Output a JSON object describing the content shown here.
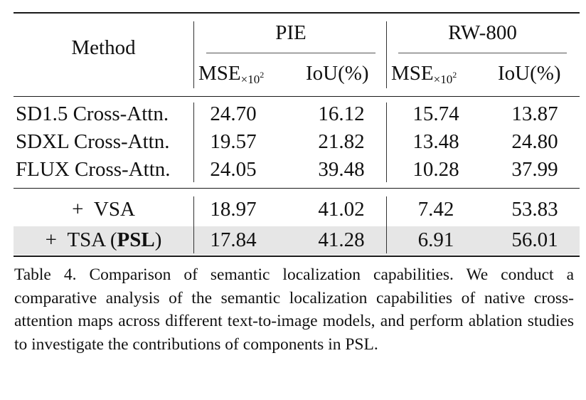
{
  "table": {
    "header": {
      "method": "Method",
      "groups": [
        "PIE",
        "RW-800"
      ],
      "mse_base": "MSE",
      "mse_sub": "×10",
      "mse_exp": "2",
      "iou": "IoU(%)"
    },
    "rows": [
      {
        "method": "SD1.5 Cross-Attn.",
        "pie_mse": "24.70",
        "pie_iou": "16.12",
        "rw_mse": "15.74",
        "rw_iou": "13.87"
      },
      {
        "method": "SDXL Cross-Attn.",
        "pie_mse": "19.57",
        "pie_iou": "21.82",
        "rw_mse": "13.48",
        "rw_iou": "24.80"
      },
      {
        "method": "FLUX Cross-Attn.",
        "pie_mse": "24.05",
        "pie_iou": "39.48",
        "rw_mse": "10.28",
        "rw_iou": "37.99"
      }
    ],
    "ablation": [
      {
        "prefix": "+",
        "name": "VSA",
        "bold": "",
        "pie_mse": "18.97",
        "pie_iou": "41.02",
        "rw_mse": "7.42",
        "rw_iou": "53.83"
      },
      {
        "prefix": "+",
        "name": "TSA (",
        "bold": "PSL",
        "suffix": ")",
        "pie_mse": "17.84",
        "pie_iou": "41.28",
        "rw_mse": "6.91",
        "rw_iou": "56.01"
      }
    ]
  },
  "caption": "Table 4.  Comparison of semantic localization capabilities.  We conduct a comparative analysis of the semantic localization capabilities of native cross-attention maps across different text-to-image models, and perform ablation studies to investigate the contributions of components in PSL."
}
